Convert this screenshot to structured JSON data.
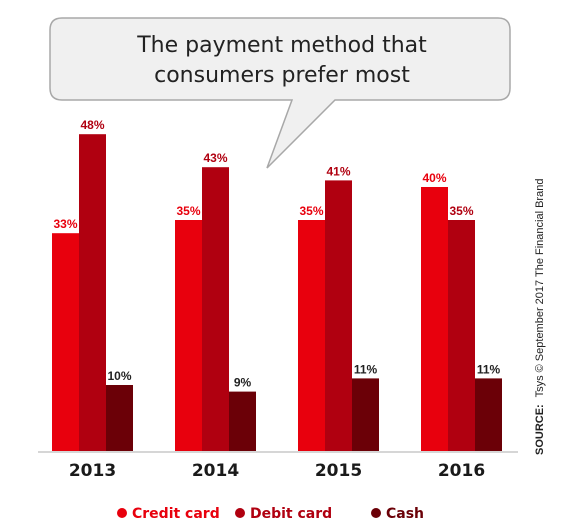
{
  "chart_data": {
    "type": "bar",
    "title": "The payment method that consumers prefer most",
    "title_lines": [
      "The payment method that",
      "consumers prefer most"
    ],
    "categories": [
      "2013",
      "2014",
      "2015",
      "2016"
    ],
    "series": [
      {
        "name": "Credit card",
        "values": [
          33,
          35,
          35,
          40
        ],
        "labels": [
          "33%",
          "35%",
          "35%",
          "40%"
        ],
        "color": "#e8000d",
        "label_color": "#e8000d"
      },
      {
        "name": "Debit card",
        "values": [
          48,
          43,
          41,
          35
        ],
        "labels": [
          "48%",
          "43%",
          "41%",
          "35%"
        ],
        "color": "#b00010",
        "label_color": "#b00010"
      },
      {
        "name": "Cash",
        "values": [
          10,
          9,
          11,
          11
        ],
        "labels": [
          "10%",
          "9%",
          "11%",
          "11%"
        ],
        "color": "#6b0007",
        "label_color": "#222222"
      }
    ],
    "ylim": [
      0,
      60
    ],
    "grid": false,
    "legend_position": "bottom",
    "source": {
      "label": "SOURCE:",
      "text": "Tsys © September 2017 The Financial Brand"
    }
  }
}
